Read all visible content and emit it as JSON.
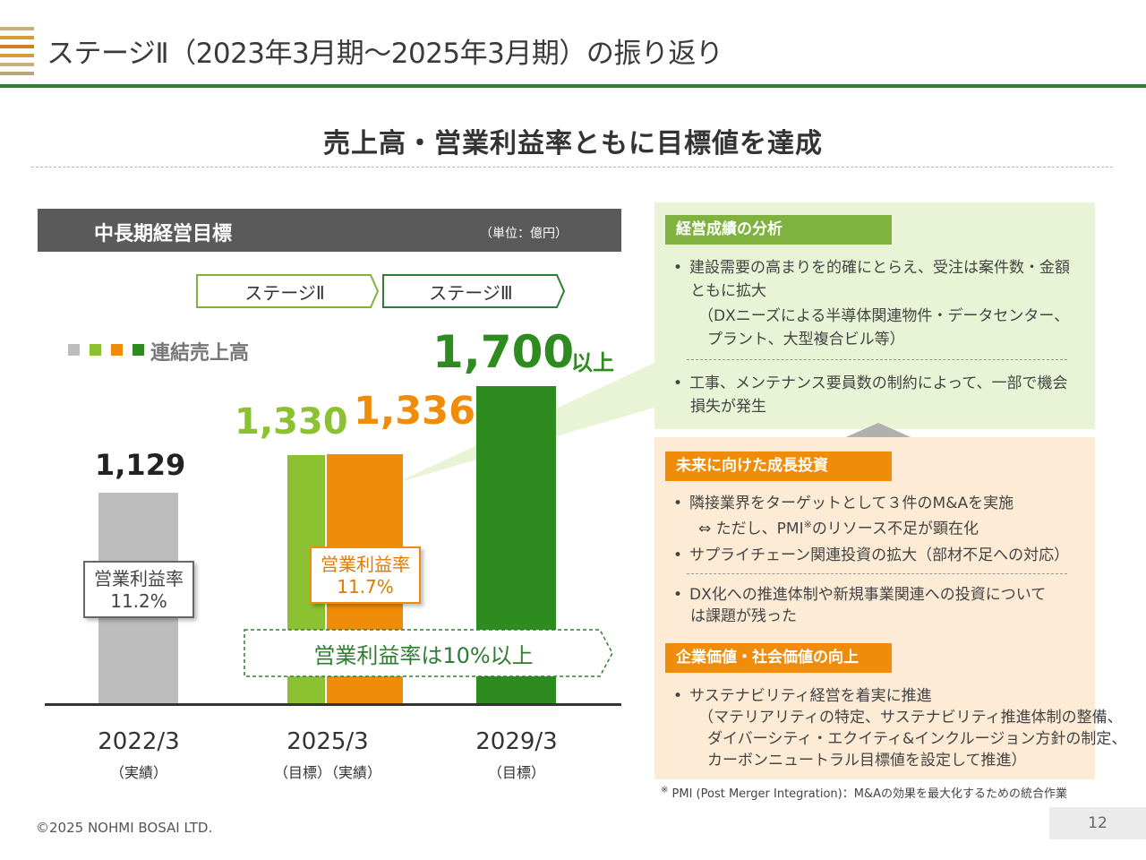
{
  "header": {
    "title": "ステージⅡ（2023年3月期～2025年3月期）の振り返り",
    "headline": "売上高・営業利益率ともに目標値を達成"
  },
  "left": {
    "panel_title": "中長期経営目標",
    "unit": "（単位：億円）",
    "stage2": "ステージⅡ",
    "stage3": "ステージⅢ",
    "legend": "連結売上高",
    "margin_label": "営業利益率",
    "target_banner": "営業利益率は10%以上"
  },
  "chart_data": {
    "type": "bar",
    "title": "",
    "series_label": "連結売上高",
    "categories": [
      "2022/3",
      "2025/3",
      "2025/3",
      "2029/3"
    ],
    "bars": [
      {
        "category": "2022/3",
        "sub": "（実績）",
        "value": 1129,
        "label": "1,129",
        "color": "#bdbdbd"
      },
      {
        "category": "2025/3",
        "sub": "（目標）",
        "value": 1330,
        "label": "1,330",
        "color": "#8cc131"
      },
      {
        "category": "2025/3",
        "sub": "（実績）",
        "value": 1336,
        "label": "1,336",
        "color": "#ef8c0a"
      },
      {
        "category": "2029/3",
        "sub": "（目標）",
        "value": 1700,
        "label": "1,700",
        "suffix": "以上",
        "color": "#2e8b1f"
      }
    ],
    "operating_margin": [
      {
        "category": "2022/3",
        "value": "11.2%"
      },
      {
        "category": "2025/3",
        "value": "11.7%"
      }
    ],
    "x_labels": [
      {
        "label": "2022/3",
        "sub": "（実績）"
      },
      {
        "label": "2025/3",
        "sub": "（目標）（実績）"
      },
      {
        "label": "2029/3",
        "sub": "（目標）"
      }
    ]
  },
  "right": {
    "sec1": {
      "title": "経営成績の分析",
      "b1_l1": "建設需要の高まりを的確にとらえ、受注は案件数・金額",
      "b1_l2": "ともに拡大",
      "b1_s1": "（DXニーズによる半導体関連物件・データセンター、",
      "b1_s2": "プラント、大型複合ビル等）",
      "b2_l1": "工事、メンテナンス要員数の制約によって、一部で機会",
      "b2_l2": "損失が発生"
    },
    "sec2": {
      "title": "未来に向けた成長投資",
      "b1_l1": "隣接業界をターゲットとして３件のM&Aを実施",
      "b1_s1": "⇔ ただし、PMI",
      "b1_s1_sup": "※",
      "b1_s1_tail": "のリソース不足が顕在化",
      "b2": "サプライチェーン関連投資の拡大（部材不足への対応）",
      "b3_l1": "DX化への推進体制や新規事業関連への投資について",
      "b3_l2": "は課題が残った"
    },
    "sec3": {
      "title": "企業価値・社会価値の向上",
      "b1": "サステナビリティ経営を着実に推進",
      "s1": "（マテリアリティの特定、サステナビリティ推進体制の整備、",
      "s2": "ダイバーシティ・エクイティ&インクルージョン方針の制定、",
      "s3": "カーボンニュートラル目標値を設定して推進）"
    }
  },
  "footnote": {
    "mark": "※",
    "text": "PMI (Post Merger Integration)：M&Aの効果を最大化するための統合作業"
  },
  "footer": {
    "copyright": "©2025 NOHMI BOSAI LTD.",
    "page": "12"
  }
}
